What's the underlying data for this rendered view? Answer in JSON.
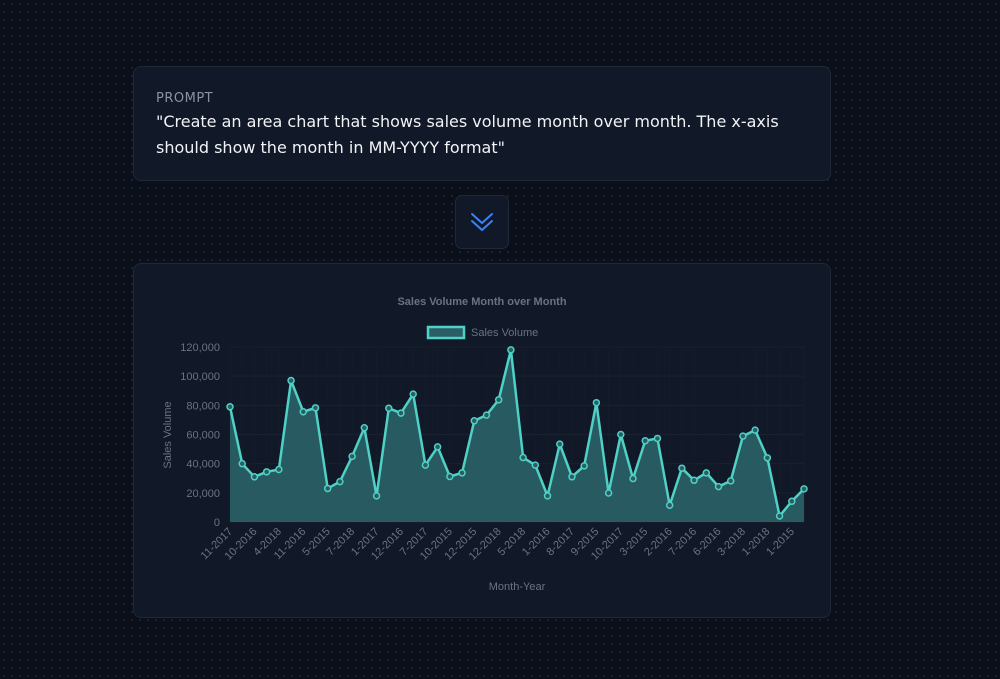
{
  "prompt": {
    "label": "PROMPT",
    "text": "\"Create an area chart that shows sales volume month over month. The x-axis should show the month in MM-YYYY format\""
  },
  "arrow_button": {
    "icon": "chevron-double-down-icon",
    "color": "#3b82f6"
  },
  "colors": {
    "line": "#4fd1c5",
    "fill": "#2a5e64",
    "text": "#6b7280"
  },
  "chart_data": {
    "type": "area",
    "title": "Sales Volume Month over Month",
    "xlabel": "Month-Year",
    "ylabel": "Sales Volume",
    "ylim": [
      0,
      120000
    ],
    "yticks": [
      "0",
      "20,000",
      "40,000",
      "60,000",
      "80,000",
      "100,000",
      "120,000"
    ],
    "legend": "top",
    "grid": true,
    "series": [
      {
        "name": "Sales Volume",
        "values": [
          79000,
          40000,
          31000,
          34400,
          36000,
          97000,
          75600,
          78300,
          23000,
          27700,
          45000,
          64600,
          17900,
          78000,
          74700,
          87700,
          39000,
          51500,
          31200,
          33700,
          69400,
          73300,
          83800,
          118000,
          44200,
          39000,
          17900,
          53400,
          31000,
          38500,
          81800,
          19900,
          60000,
          29800,
          55700,
          57300,
          11500,
          36900,
          28600,
          33700,
          24300,
          28200,
          58900,
          63000,
          44000,
          4100,
          14200,
          22700
        ]
      }
    ],
    "xtick_labels": [
      "11-2017",
      "10-2016",
      "4-2018",
      "11-2016",
      "5-2015",
      "7-2018",
      "1-2017",
      "12-2016",
      "7-2017",
      "10-2015",
      "12-2015",
      "12-2018",
      "5-2018",
      "1-2016",
      "8-2017",
      "9-2015",
      "10-2017",
      "3-2015",
      "2-2016",
      "7-2016",
      "6-2016",
      "3-2018",
      "1-2018",
      "1-2015"
    ]
  }
}
